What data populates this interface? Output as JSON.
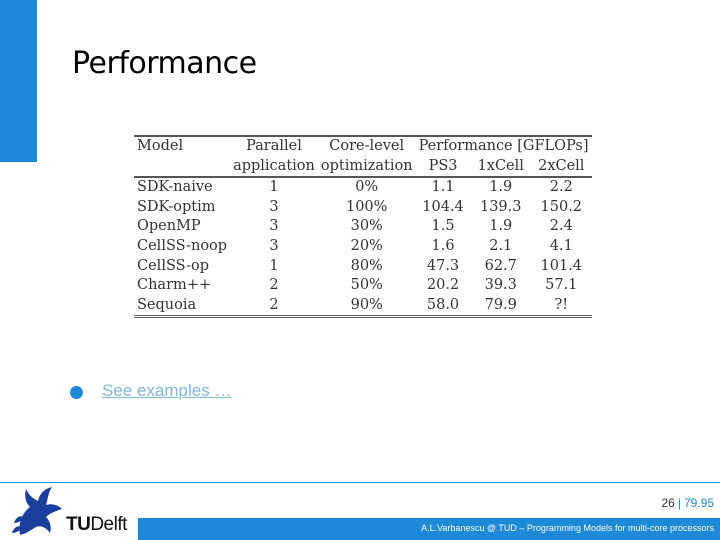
{
  "slide": {
    "title": "Performance",
    "bullet_link": "See examples …",
    "page_number": "26",
    "page_total": "79.95",
    "footer_text": "A.L.Varbanescu @ TUD – Programming Models for multi-core processors",
    "logo": {
      "tu": "TU",
      "delft": "Delft"
    },
    "accent_color": "#1c8ad6",
    "icons": {
      "bullet": "circle-bullet-icon",
      "logo": "flame-griffin-icon"
    }
  },
  "table": {
    "header_row1": [
      "Model",
      "Parallel",
      "Core-level",
      "Performance [GFLOPs]"
    ],
    "header_row2": [
      "",
      "application",
      "optimization",
      "PS3",
      "1xCell",
      "2xCell"
    ],
    "rows": [
      [
        "SDK-naive",
        "1",
        "0%",
        "1.1",
        "1.9",
        "2.2"
      ],
      [
        "SDK-optim",
        "3",
        "100%",
        "104.4",
        "139.3",
        "150.2"
      ],
      [
        "OpenMP",
        "3",
        "30%",
        "1.5",
        "1.9",
        "2.4"
      ],
      [
        "CellSS-noop",
        "3",
        "20%",
        "1.6",
        "2.1",
        "4.1"
      ],
      [
        "CellSS-op",
        "1",
        "80%",
        "47.3",
        "62.7",
        "101.4"
      ],
      [
        "Charm++",
        "2",
        "50%",
        "20.2",
        "39.3",
        "57.1"
      ],
      [
        "Sequoia",
        "2",
        "90%",
        "58.0",
        "79.9",
        "?!"
      ]
    ]
  }
}
